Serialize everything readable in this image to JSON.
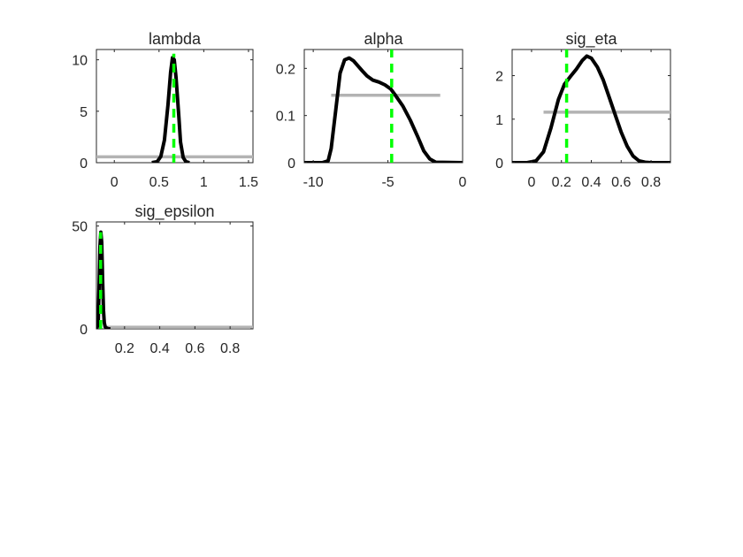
{
  "chart_data": [
    {
      "type": "line",
      "title": "lambda",
      "xlabel": "",
      "ylabel": "",
      "xlim": [
        -0.2,
        1.55
      ],
      "ylim": [
        0,
        11
      ],
      "xticks": [
        0,
        0.5,
        1,
        1.5
      ],
      "xtick_labels": [
        "0",
        "0.5",
        "1",
        "1.5"
      ],
      "yticks": [
        0,
        5,
        10
      ],
      "ytick_labels": [
        "0",
        "5",
        "10"
      ],
      "grid": false,
      "series": [
        {
          "role": "prior",
          "color": "#b3b3b3",
          "x": [
            -0.2,
            1.55
          ],
          "y": [
            0.57,
            0.57
          ]
        },
        {
          "role": "posterior",
          "color": "#000000",
          "x": [
            0.42,
            0.48,
            0.52,
            0.56,
            0.6,
            0.63,
            0.65,
            0.67,
            0.69,
            0.72,
            0.74,
            0.77,
            0.8,
            0.84
          ],
          "y": [
            0.0,
            0.1,
            0.6,
            2.2,
            5.6,
            8.8,
            10.2,
            10.0,
            8.3,
            4.6,
            2.0,
            0.5,
            0.1,
            0.0
          ]
        },
        {
          "role": "mode",
          "color": "#00ff00",
          "dashed": true,
          "x": [
            0.665,
            0.665
          ],
          "y": [
            0,
            10.6
          ]
        }
      ]
    },
    {
      "type": "line",
      "title": "alpha",
      "xlabel": "",
      "ylabel": "",
      "xlim": [
        -10.6,
        0
      ],
      "ylim": [
        0,
        0.24
      ],
      "xticks": [
        -10,
        -5,
        0
      ],
      "xtick_labels": [
        "-10",
        "-5",
        "0"
      ],
      "yticks": [
        0,
        0.1,
        0.2
      ],
      "ytick_labels": [
        "0",
        "0.1",
        "0.2"
      ],
      "grid": false,
      "series": [
        {
          "role": "prior",
          "color": "#b3b3b3",
          "x": [
            -8.8,
            -1.5
          ],
          "y": [
            0.143,
            0.143
          ]
        },
        {
          "role": "posterior",
          "color": "#000000",
          "x": [
            -10.6,
            -9.4,
            -9.0,
            -8.8,
            -8.5,
            -8.2,
            -7.9,
            -7.6,
            -7.3,
            -7.0,
            -6.7,
            -6.4,
            -6.0,
            -5.6,
            -5.2,
            -4.8,
            -4.5,
            -4.0,
            -3.5,
            -3.0,
            -2.6,
            -2.2,
            -1.8,
            0.0
          ],
          "y": [
            0.0,
            0.0,
            0.004,
            0.03,
            0.11,
            0.19,
            0.218,
            0.222,
            0.216,
            0.205,
            0.194,
            0.184,
            0.175,
            0.171,
            0.165,
            0.156,
            0.143,
            0.12,
            0.09,
            0.055,
            0.025,
            0.008,
            0.001,
            0.0
          ]
        },
        {
          "role": "mode",
          "color": "#00ff00",
          "dashed": true,
          "x": [
            -4.75,
            -4.75
          ],
          "y": [
            0,
            0.24
          ]
        }
      ]
    },
    {
      "type": "line",
      "title": "sig_eta",
      "xlabel": "",
      "ylabel": "",
      "xlim": [
        -0.13,
        0.93
      ],
      "ylim": [
        0,
        2.6
      ],
      "xticks": [
        0,
        0.2,
        0.4,
        0.6,
        0.8
      ],
      "xtick_labels": [
        "0",
        "0.2",
        "0.4",
        "0.6",
        "0.8"
      ],
      "yticks": [
        0,
        1,
        2
      ],
      "ytick_labels": [
        "0",
        "1",
        "2"
      ],
      "grid": false,
      "series": [
        {
          "role": "prior",
          "color": "#b3b3b3",
          "x": [
            0.08,
            0.93
          ],
          "y": [
            1.16,
            1.16
          ]
        },
        {
          "role": "posterior",
          "color": "#000000",
          "x": [
            -0.13,
            -0.03,
            0.03,
            0.08,
            0.13,
            0.18,
            0.22,
            0.26,
            0.3,
            0.34,
            0.37,
            0.4,
            0.44,
            0.48,
            0.52,
            0.56,
            0.6,
            0.64,
            0.68,
            0.72,
            0.76,
            0.8,
            0.93
          ],
          "y": [
            0.0,
            0.0,
            0.04,
            0.25,
            0.8,
            1.45,
            1.8,
            1.98,
            2.15,
            2.35,
            2.45,
            2.4,
            2.2,
            1.9,
            1.5,
            1.1,
            0.7,
            0.38,
            0.15,
            0.04,
            0.01,
            0.0,
            0.0
          ]
        },
        {
          "role": "mode",
          "color": "#00ff00",
          "dashed": true,
          "x": [
            0.235,
            0.235
          ],
          "y": [
            0,
            2.6
          ]
        }
      ]
    },
    {
      "type": "line",
      "title": "sig_epsilon",
      "xlabel": "",
      "ylabel": "",
      "xlim": [
        0.04,
        0.93
      ],
      "ylim": [
        0,
        52
      ],
      "xticks": [
        0.2,
        0.4,
        0.6,
        0.8
      ],
      "xtick_labels": [
        "0.2",
        "0.4",
        "0.6",
        "0.8"
      ],
      "yticks": [
        0,
        50
      ],
      "ytick_labels": [
        "0",
        "50"
      ],
      "grid": false,
      "series": [
        {
          "role": "prior",
          "color": "#b3b3b3",
          "x": [
            0.1,
            0.93
          ],
          "y": [
            0.8,
            0.8
          ]
        },
        {
          "role": "posterior",
          "color": "#000000",
          "x": [
            0.04,
            0.05,
            0.055,
            0.06,
            0.065,
            0.07,
            0.075,
            0.08,
            0.085,
            0.09,
            0.1,
            0.11,
            0.12
          ],
          "y": [
            0.0,
            2.0,
            20.0,
            40.0,
            47.0,
            42.0,
            24.0,
            9.0,
            3.0,
            1.0,
            0.3,
            0.0,
            0.0
          ]
        },
        {
          "role": "mode",
          "color": "#00ff00",
          "dashed": true,
          "x": [
            0.064,
            0.064
          ],
          "y": [
            0,
            47
          ]
        }
      ]
    }
  ]
}
